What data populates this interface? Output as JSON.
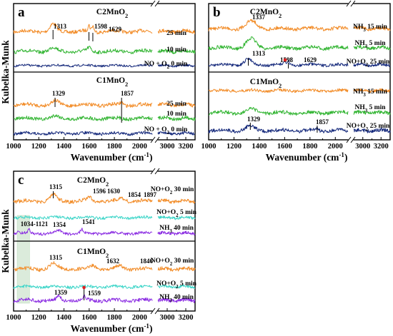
{
  "colors": {
    "orange": "#f28c28",
    "green": "#33b533",
    "navy": "#162a7c",
    "cyan": "#3fd6c9",
    "purple": "#8a2be2",
    "marker": "#e02020",
    "band": "#cfe5cf"
  },
  "y_axis_label": "Kubelka-Munk",
  "chart_data": [
    {
      "panel": "a",
      "type": "line",
      "xlabel": "Wavenumber (cm⁻¹)",
      "ylabel": "Kubelka-Munk",
      "x_break": [
        2100,
        2900
      ],
      "xlim": [
        [
          1000,
          2100
        ],
        [
          2900,
          3300
        ]
      ],
      "x_ticks": [
        "1000",
        "1200",
        "1400",
        "1600",
        "1800",
        "2000",
        "3000",
        "3200"
      ],
      "subplots": [
        {
          "sample": "C2MnO2",
          "series": [
            {
              "name": "25 min",
              "color": "orange",
              "peaks": [
                1313,
                1598,
                1629
              ]
            },
            {
              "name": "10 min",
              "color": "green",
              "peaks": [
                1313,
                1598,
                1629
              ]
            },
            {
              "name": "NO + O2 0 min",
              "color": "navy",
              "peaks": []
            }
          ],
          "annotations": [
            "1313",
            "1598",
            "1629"
          ]
        },
        {
          "sample": "C1MnO2",
          "series": [
            {
              "name": "25 min",
              "color": "orange",
              "peaks": [
                1329,
                1857
              ]
            },
            {
              "name": "10 min",
              "color": "green",
              "peaks": [
                1329,
                1857
              ]
            },
            {
              "name": "NO + O2 0 min",
              "color": "navy",
              "peaks": []
            }
          ],
          "annotations": [
            "1329",
            "1857"
          ]
        }
      ]
    },
    {
      "panel": "b",
      "type": "line",
      "xlabel": "Wavenumber (cm⁻¹)",
      "x_break": [
        2100,
        2900
      ],
      "xlim": [
        [
          1000,
          2100
        ],
        [
          2900,
          3300
        ]
      ],
      "x_ticks": [
        "1000",
        "1200",
        "1400",
        "1600",
        "1800",
        "2000",
        "3000",
        "3200"
      ],
      "subplots": [
        {
          "sample": "C2MnO2",
          "series": [
            {
              "name": "NH3 15 min",
              "color": "orange",
              "peaks": [
                1337
              ]
            },
            {
              "name": "NH3 5 min",
              "color": "green",
              "peaks": [
                1337
              ]
            },
            {
              "name": "NO+O2 25 min",
              "color": "navy",
              "peaks": [
                1313,
                1598,
                1629
              ]
            }
          ],
          "annotations": [
            "1337",
            "1313",
            "1598",
            "1629"
          ]
        },
        {
          "sample": "C1MnO2",
          "series": [
            {
              "name": "NH3 15 min",
              "color": "orange",
              "peaks": []
            },
            {
              "name": "NH3 5 min",
              "color": "green",
              "peaks": []
            },
            {
              "name": "NO+O2 25 min",
              "color": "navy",
              "peaks": [
                1329,
                1857
              ]
            }
          ],
          "annotations": [
            "1329",
            "1857"
          ]
        }
      ]
    },
    {
      "panel": "c",
      "type": "line",
      "xlabel": "Wavenumber (cm⁻¹)",
      "ylabel": "Kubelka-Munk",
      "x_break": [
        2100,
        2900
      ],
      "xlim": [
        [
          1000,
          2100
        ],
        [
          2900,
          3300
        ]
      ],
      "x_ticks": [
        "1000",
        "1200",
        "1400",
        "1600",
        "1800",
        "2000",
        "3000",
        "3200"
      ],
      "highlight_band": [
        1034,
        1121
      ],
      "subplots": [
        {
          "sample": "C2MnO2",
          "series": [
            {
              "name": "NO+O2 30 min",
              "color": "orange",
              "peaks": [
                1315,
                1596,
                1630,
                1854,
                1897
              ]
            },
            {
              "name": "NO+O2 5 min",
              "color": "cyan",
              "peaks": []
            },
            {
              "name": "NH3 40 min",
              "color": "purple",
              "peaks": [
                1034,
                1121,
                1354,
                1541
              ]
            }
          ],
          "annotations": [
            "1315",
            "1596",
            "1630",
            "1854",
            "1897",
            "1034-1121",
            "1354",
            "1541"
          ]
        },
        {
          "sample": "C1MnO2",
          "series": [
            {
              "name": "NO+O2 30 min",
              "color": "orange",
              "peaks": [
                1315,
                1632,
                1846
              ]
            },
            {
              "name": "NO+O2 5 min",
              "color": "cyan",
              "peaks": []
            },
            {
              "name": "NH3 40 min",
              "color": "purple",
              "peaks": [
                1359,
                1559
              ]
            }
          ],
          "annotations": [
            "1315",
            "1632",
            "1846",
            "1359",
            "1559"
          ]
        }
      ]
    }
  ]
}
